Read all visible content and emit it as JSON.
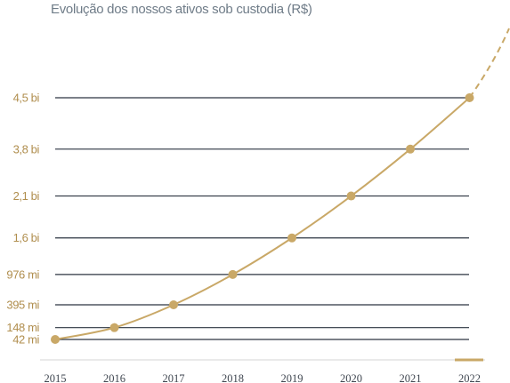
{
  "chart_data": {
    "type": "line",
    "title": "Evolução dos nossos ativos sob custodia (R$)",
    "xlabel": "",
    "ylabel": "",
    "categories": [
      "2015",
      "2016",
      "2017",
      "2018",
      "2019",
      "2020",
      "2021",
      "2022"
    ],
    "series": [
      {
        "labels": [
          "42 mi",
          "148 mi",
          "395 mi",
          "976 mi",
          "1,6 bi",
          "2,1 bi",
          "3,8 bi",
          "4,5 bi"
        ],
        "values": [
          42,
          148,
          395,
          976,
          1600,
          2100,
          3800,
          4500
        ],
        "unit": "R$ mi"
      }
    ],
    "projection": "dashed extension after 2022",
    "grid": true,
    "colors": {
      "line": "#c9a867",
      "point": "#c9a867",
      "grid": "#2c3440",
      "ylabel": "#b08e4e",
      "xlabel": "#3f4650",
      "title": "#6f7c88"
    }
  }
}
